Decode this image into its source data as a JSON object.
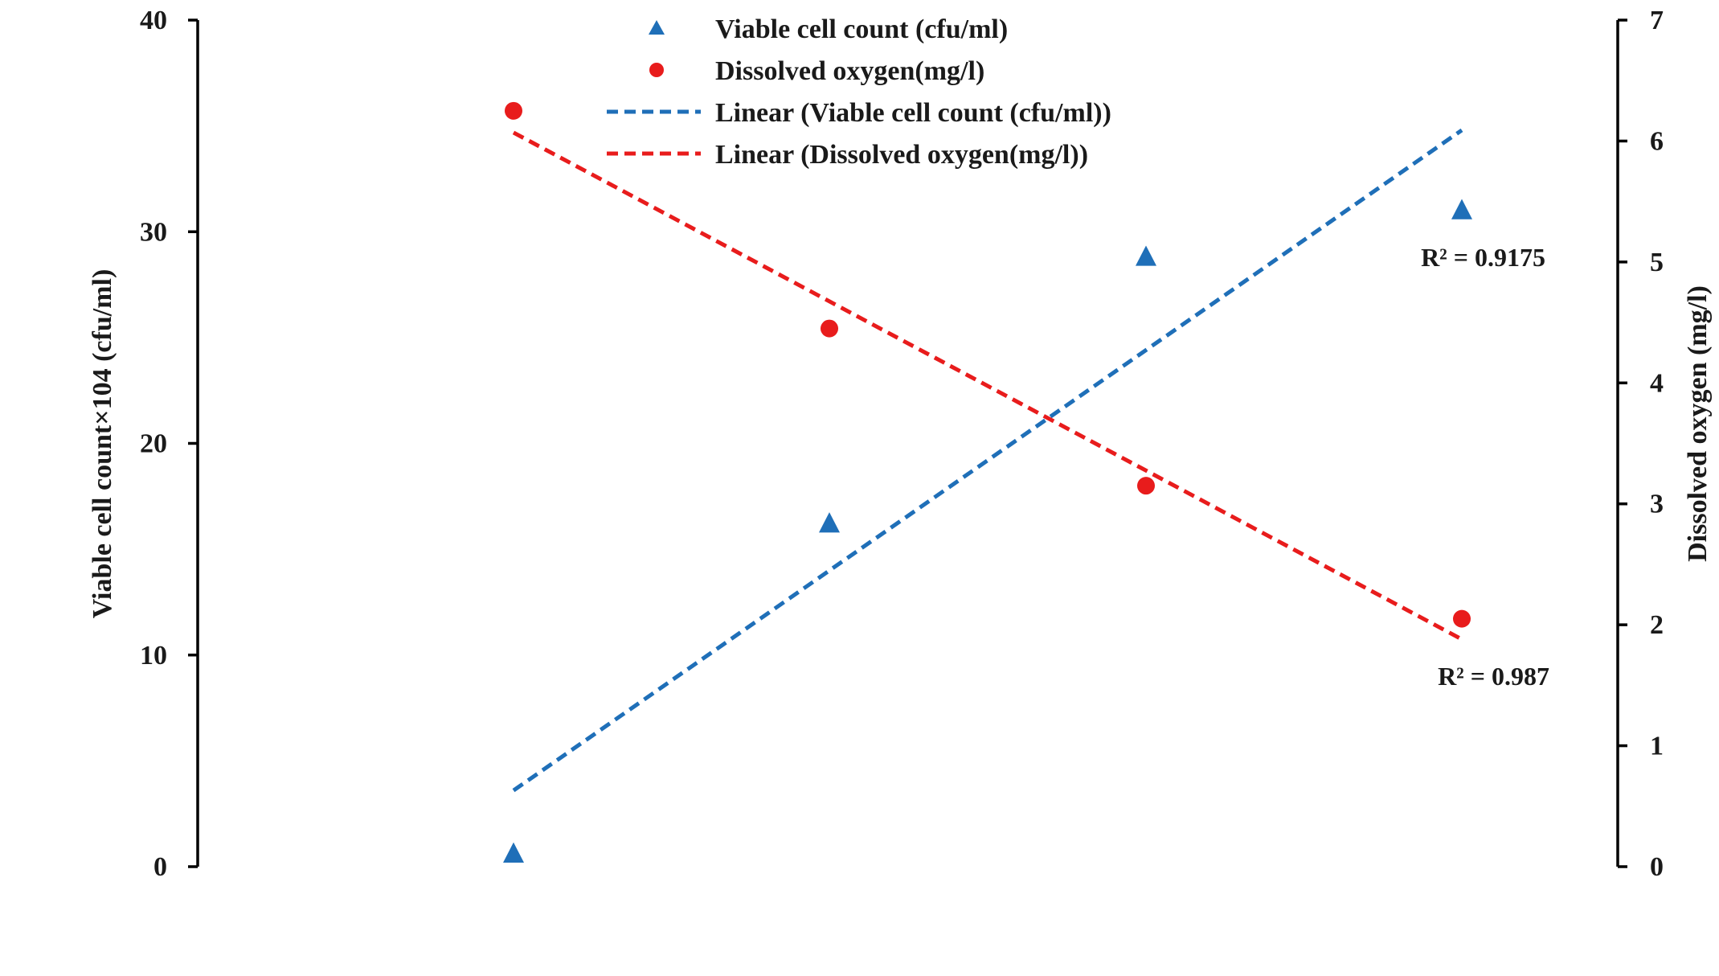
{
  "chart_data": {
    "type": "scatter",
    "title": "",
    "categories": [
      "",
      "",
      "",
      ""
    ],
    "x": [
      1,
      2,
      3,
      4
    ],
    "left_axis": {
      "label": "Viable cell count×104 (cfu/ml)",
      "ylim": [
        0,
        40
      ],
      "ticks": [
        "0",
        "10",
        "20",
        "30",
        "40"
      ]
    },
    "right_axis": {
      "label": "Dissolved oxygen  (mg/l)",
      "ylim": [
        0,
        7
      ],
      "ticks": [
        "0",
        "1",
        "2",
        "3",
        "4",
        "5",
        "6",
        "7"
      ]
    },
    "series": [
      {
        "name": "Viable cell count (cfu/ml)",
        "axis": "left",
        "marker": "triangle",
        "color": "#1f6fb8",
        "values": [
          0.6,
          16.2,
          28.8,
          31.0
        ]
      },
      {
        "name": "Dissolved oxygen(mg/l)",
        "axis": "right",
        "marker": "circle",
        "color": "#e81c1c",
        "values": [
          6.25,
          4.45,
          3.15,
          2.05
        ]
      }
    ],
    "trendlines": [
      {
        "name": "Linear (Viable cell count (cfu/ml))",
        "axis": "left",
        "color": "#1f6fb8",
        "start": [
          1,
          3.6
        ],
        "end": [
          4,
          34.8
        ],
        "r2_label": "R² = 0.9175"
      },
      {
        "name": "Linear (Dissolved oxygen(mg/l))",
        "axis": "right",
        "color": "#e81c1c",
        "start": [
          1,
          6.07
        ],
        "end": [
          4,
          1.88
        ],
        "r2_label": "R² = 0.987"
      }
    ],
    "legend_position": "top-center",
    "grid": false
  }
}
